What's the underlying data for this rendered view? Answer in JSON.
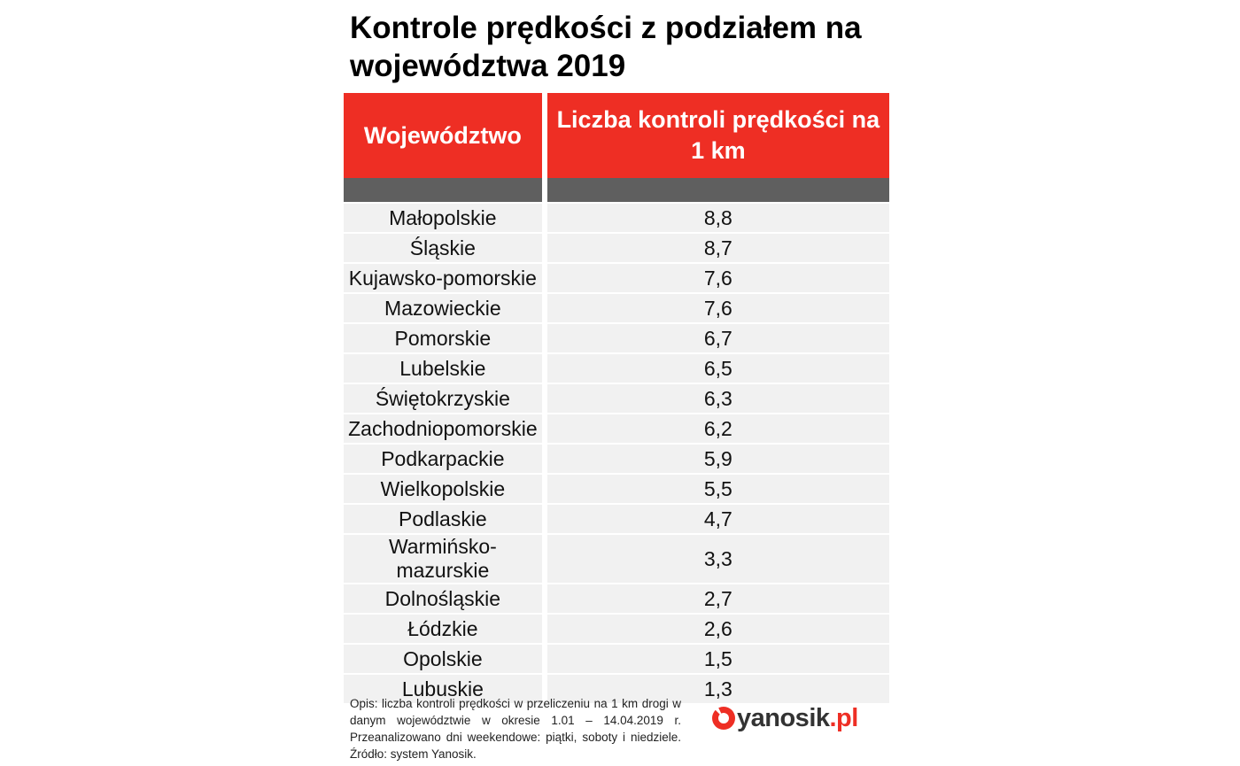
{
  "header": {
    "title": "Kontrole prędkości z podziałem na województwa 2019"
  },
  "table": {
    "columns": [
      "Województwo",
      "Liczba kontroli prędkości na 1 km"
    ],
    "rows": [
      [
        "Małopolskie",
        "8,8"
      ],
      [
        "Śląskie",
        "8,7"
      ],
      [
        "Kujawsko-pomorskie",
        "7,6"
      ],
      [
        "Mazowieckie",
        "7,6"
      ],
      [
        "Pomorskie",
        "6,7"
      ],
      [
        "Lubelskie",
        "6,5"
      ],
      [
        "Świętokrzyskie",
        "6,3"
      ],
      [
        "Zachodniopomorskie",
        "6,2"
      ],
      [
        "Podkarpackie",
        "5,9"
      ],
      [
        "Wielkopolskie",
        "5,5"
      ],
      [
        "Podlaskie",
        "4,7"
      ],
      [
        "Warmińsko-mazurskie",
        "3,3"
      ],
      [
        "Dolnośląskie",
        "2,7"
      ],
      [
        "Łódzkie",
        "2,6"
      ],
      [
        "Opolskie",
        "1,5"
      ],
      [
        "Lubuskie",
        "1,3"
      ]
    ]
  },
  "footer": {
    "note": "Opis: liczba kontroli prędkości w przeliczeniu na 1 km drogi w danym województwie w okresie 1.01 – 14.04.2019 r. Przeanalizowano dni weekendowe: piątki, soboty i niedziele. Źródło: system Yanosik.",
    "logo": {
      "name": "yanosik",
      "domain": ".pl"
    }
  }
}
